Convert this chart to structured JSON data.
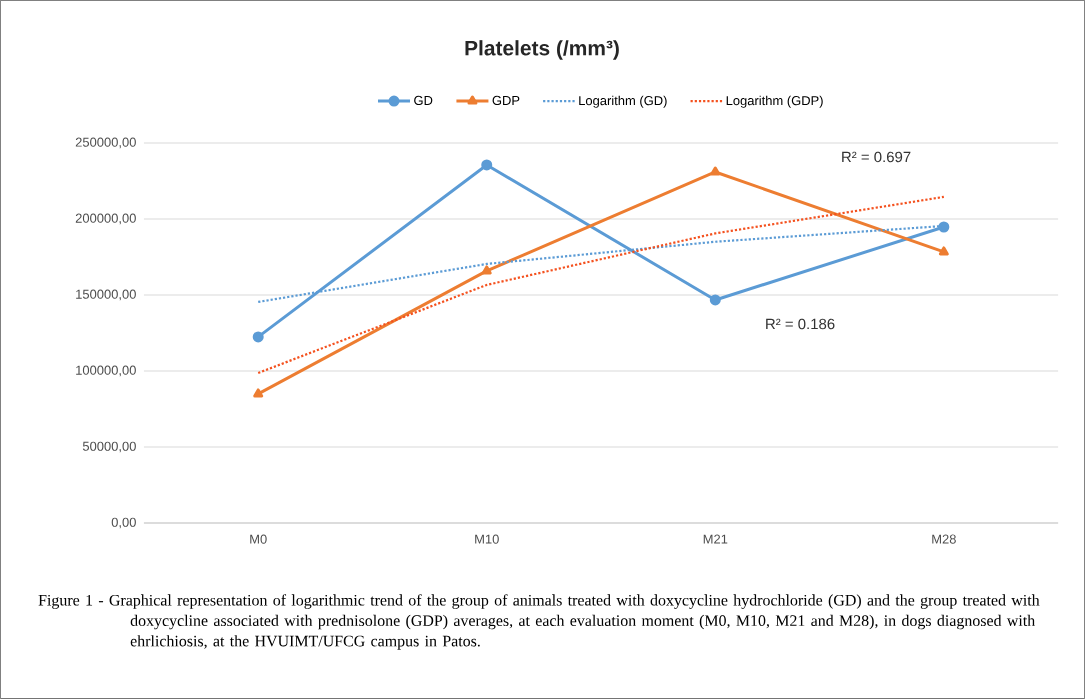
{
  "chart_data": {
    "type": "line",
    "title": "Platelets (/mm³)",
    "categories": [
      "M0",
      "M10",
      "M21",
      "M28"
    ],
    "series": [
      {
        "name": "GD",
        "color": "#5b9bd5",
        "values": [
          122400,
          235500,
          146700,
          194700
        ],
        "marker": "circle",
        "line_style": "solid"
      },
      {
        "name": "GDP",
        "color": "#ed7d31",
        "values": [
          84900,
          165800,
          230900,
          178300
        ],
        "marker": "triangle",
        "line_style": "solid"
      },
      {
        "name": "Logarithm (GD)",
        "color": "#5b9bd5",
        "values": [
          145400,
          170400,
          185000,
          195400
        ],
        "marker": "none",
        "line_style": "dotted"
      },
      {
        "name": "Logarithm (GDP)",
        "color": "#f4511e",
        "values": [
          98700,
          156600,
          190500,
          214500
        ],
        "marker": "none",
        "line_style": "dotted"
      }
    ],
    "ylim": [
      0,
      250000
    ],
    "yticks": [
      {
        "value": 0,
        "label": "0,00"
      },
      {
        "value": 50000,
        "label": "50000,00"
      },
      {
        "value": 100000,
        "label": "100000,00"
      },
      {
        "value": 150000,
        "label": "150000,00"
      },
      {
        "value": 200000,
        "label": "200000,00"
      },
      {
        "value": 250000,
        "label": "250000,00"
      }
    ],
    "grid": "y",
    "legend": "top",
    "annotations": [
      "R² = 0.697",
      "R² = 0.186",
      "Figure 1 - Graphical representation of logarithmic trend of the group of animals treated with doxycycline hydrochloride (GD) and the group treated with doxycycline associated with prednisolone (GDP) averages, at each evaluation moment (M0, M10, M21 and M28), in dogs diagnosed with ehrlichiosis, at the HVUIMT/UFCG campus in Patos."
    ]
  }
}
